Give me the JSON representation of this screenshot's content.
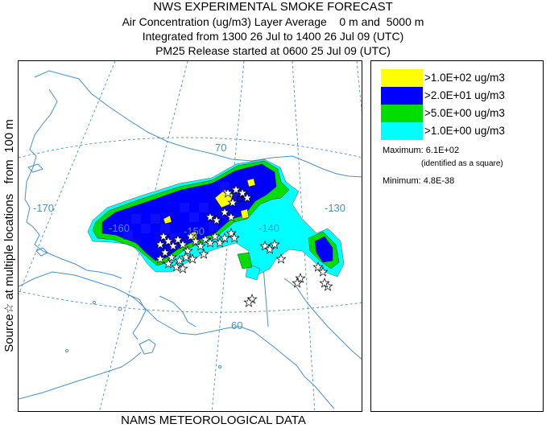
{
  "title": {
    "line1": "NWS EXPERIMENTAL SMOKE FORECAST",
    "line2": "Air Concentration (ug/m3) Layer Average    0 m and  5000 m",
    "line3": "Integrated from 1300 26 Jul to 1400 26 Jul 09 (UTC)",
    "line4": "PM25 Release started at 0600 25 Jul 09 (UTC)"
  },
  "side_label": "Source☆ at multiple locations   from  100 m",
  "footer": "NAMS METEOROLOGICAL DATA",
  "map": {
    "grid_labels": [
      "-170",
      "-160",
      "-150",
      "-140",
      "-130",
      "70",
      "60"
    ],
    "colors": {
      "coast": "#4a90c8",
      "grid": "#4a90c8",
      "cyan": "#00ffff",
      "green": "#00dd00",
      "blue": "#0000ff",
      "yellow": "#ffff00"
    }
  },
  "legend": {
    "items": [
      {
        "label": ">1.0E+02 ug/m3",
        "color": "#ffff00"
      },
      {
        "label": ">2.0E+01 ug/m3",
        "color": "#0000ff"
      },
      {
        "label": ">5.0E+00 ug/m3",
        "color": "#00dd00"
      },
      {
        "label": ">1.0E+00 ug/m3",
        "color": "#00ffff"
      }
    ],
    "maximum": "Maximum: 6.1E+02",
    "max_note": "(identified as a square)",
    "minimum": "Minimum: 4.8E-38"
  }
}
